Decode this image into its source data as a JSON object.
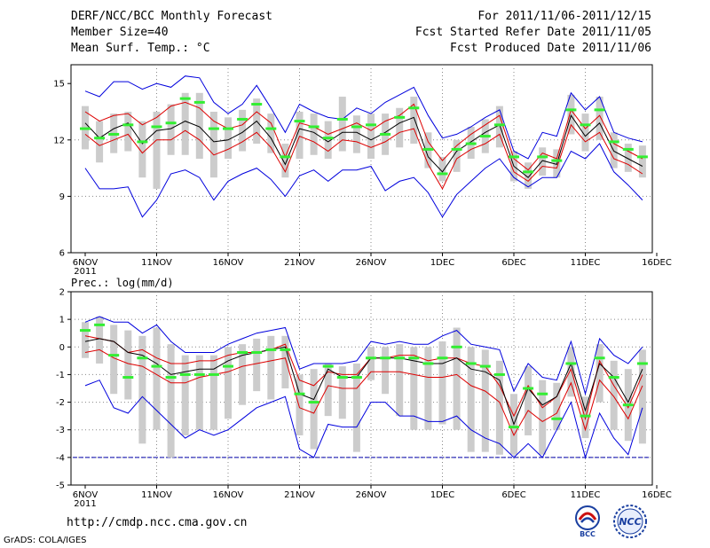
{
  "header": {
    "title": "DERF/NCC/BCC Monthly Forecast",
    "member_size": "Member Size=40",
    "variable": "Mean Surf. Temp.: °C",
    "period": "For 2011/11/06-2011/12/15",
    "fcst_started": "Fcst Started Refer Date 2011/11/05",
    "fcst_produced": "Fcst Produced Date 2011/11/06"
  },
  "footer": {
    "url": "http://cmdp.ncc.cma.gov.cn",
    "credit": "GrADS: COLA/IGES"
  },
  "logos": {
    "bcc": "BCC",
    "ncc": "NCC"
  },
  "colors": {
    "mean": "#000000",
    "spread": "#dd0000",
    "envelope": "#0000dd",
    "box": "#cccccc",
    "marker": "#33ee33"
  },
  "chart_data": [
    {
      "type": "line",
      "title": "Mean Surf. Temp.: °C",
      "x_tick_labels": [
        "6NOV",
        "11NOV",
        "16NOV",
        "21NOV",
        "26NOV",
        "1DEC",
        "6DEC",
        "11DEC",
        "16DEC"
      ],
      "x_year_label": "2011",
      "ylim": [
        6,
        16
      ],
      "y_ticks": [
        6,
        9,
        12,
        15
      ],
      "grid": true,
      "series": [
        {
          "name": "max",
          "values": [
            14.6,
            14.3,
            15.1,
            15.1,
            14.7,
            15.0,
            14.8,
            15.4,
            15.3,
            14.0,
            13.4,
            13.9,
            14.9,
            13.7,
            12.4,
            13.9,
            13.5,
            13.2,
            13.1,
            13.7,
            13.4,
            14.0,
            14.4,
            14.8,
            13.3,
            12.1,
            12.3,
            12.7,
            13.2,
            13.6,
            11.4,
            11.0,
            12.4,
            12.2,
            14.5,
            13.6,
            14.3,
            12.4,
            12.1,
            11.9
          ]
        },
        {
          "name": "upper",
          "values": [
            13.5,
            13.0,
            13.3,
            13.4,
            12.8,
            13.2,
            13.8,
            14.0,
            13.7,
            13.0,
            12.6,
            12.8,
            13.5,
            12.9,
            11.1,
            12.9,
            12.7,
            12.3,
            12.6,
            12.9,
            12.5,
            13.0,
            13.3,
            13.9,
            11.9,
            10.9,
            11.7,
            12.3,
            12.8,
            13.3,
            11.0,
            10.4,
            11.3,
            11.0,
            13.6,
            12.6,
            13.3,
            11.8,
            11.4,
            11.0
          ]
        },
        {
          "name": "mean",
          "values": [
            12.9,
            12.1,
            12.6,
            12.9,
            11.8,
            12.5,
            12.6,
            13.0,
            12.7,
            11.9,
            12.0,
            12.4,
            13.0,
            12.1,
            10.7,
            12.6,
            12.4,
            11.9,
            12.4,
            12.4,
            12.0,
            12.4,
            12.9,
            13.2,
            11.1,
            10.3,
            11.4,
            11.9,
            12.4,
            12.8,
            10.6,
            10.0,
            10.9,
            10.7,
            13.3,
            12.2,
            12.9,
            11.4,
            11.0,
            10.6
          ]
        },
        {
          "name": "lower",
          "values": [
            12.3,
            11.7,
            12.0,
            12.3,
            11.3,
            12.0,
            12.0,
            12.5,
            12.0,
            11.2,
            11.5,
            11.9,
            12.4,
            11.6,
            10.3,
            12.2,
            11.9,
            11.4,
            12.0,
            11.9,
            11.6,
            11.9,
            12.4,
            12.6,
            10.7,
            9.4,
            11.0,
            11.5,
            11.8,
            12.3,
            10.3,
            9.8,
            10.6,
            10.5,
            12.8,
            11.9,
            12.4,
            11.0,
            10.7,
            10.2
          ]
        },
        {
          "name": "min",
          "values": [
            10.5,
            9.4,
            9.4,
            9.5,
            7.9,
            8.8,
            10.2,
            10.4,
            10.0,
            8.8,
            9.8,
            10.2,
            10.5,
            9.9,
            9.0,
            10.1,
            10.4,
            9.8,
            10.4,
            10.4,
            10.6,
            9.3,
            9.8,
            10.0,
            9.2,
            7.9,
            9.1,
            9.8,
            10.5,
            11.0,
            10.0,
            9.5,
            10.0,
            10.0,
            11.4,
            11.0,
            11.8,
            10.3,
            9.6,
            8.8
          ]
        },
        {
          "name": "obs",
          "values": [
            12.6,
            12.1,
            12.3,
            12.8,
            11.9,
            12.7,
            12.9,
            14.2,
            14.0,
            12.6,
            12.6,
            13.1,
            13.9,
            12.6,
            11.1,
            13.0,
            12.7,
            12.1,
            13.1,
            12.7,
            12.8,
            12.3,
            13.2,
            13.7,
            11.5,
            10.2,
            11.5,
            11.8,
            12.2,
            12.8,
            11.1,
            10.3,
            11.1,
            10.9,
            13.6,
            12.8,
            13.6,
            11.9,
            11.5,
            11.1
          ]
        },
        {
          "name": "box_high",
          "values": [
            13.8,
            13.0,
            13.4,
            13.5,
            13.0,
            13.5,
            13.9,
            14.5,
            14.5,
            13.5,
            13.2,
            13.6,
            14.2,
            13.4,
            11.8,
            13.5,
            13.4,
            13.0,
            14.3,
            13.3,
            13.4,
            13.4,
            13.7,
            14.3,
            12.4,
            11.1,
            12.0,
            12.7,
            13.1,
            13.8,
            11.4,
            10.8,
            11.6,
            11.5,
            14.4,
            13.4,
            14.3,
            12.4,
            11.8,
            11.7
          ]
        },
        {
          "name": "box_low",
          "values": [
            11.5,
            10.8,
            11.3,
            11.4,
            10.0,
            9.4,
            11.2,
            11.2,
            11.0,
            10.0,
            11.0,
            11.4,
            11.8,
            11.3,
            10.0,
            11.0,
            11.2,
            11.0,
            11.4,
            11.3,
            11.0,
            11.2,
            11.6,
            11.8,
            10.5,
            9.8,
            10.3,
            11.0,
            11.3,
            11.6,
            9.8,
            9.4,
            10.1,
            10.0,
            12.3,
            11.4,
            12.0,
            10.5,
            10.3,
            10.0
          ]
        }
      ]
    },
    {
      "type": "line",
      "title": "Prec.: log(mm/d)",
      "x_tick_labels": [
        "6NOV",
        "11NOV",
        "16NOV",
        "21NOV",
        "26NOV",
        "1DEC",
        "6DEC",
        "11DEC",
        "16DEC"
      ],
      "x_year_label": "2011",
      "ylim": [
        -5,
        2
      ],
      "y_ticks": [
        -5,
        -4,
        -3,
        -2,
        -1,
        0,
        1,
        2
      ],
      "grid": true,
      "series": [
        {
          "name": "max",
          "values": [
            0.9,
            1.1,
            0.9,
            0.9,
            0.5,
            0.8,
            0.2,
            -0.2,
            -0.2,
            -0.2,
            0.1,
            0.3,
            0.5,
            0.6,
            0.7,
            -0.8,
            -0.6,
            -0.6,
            -0.6,
            -0.5,
            0.2,
            0.1,
            0.2,
            0.1,
            0.1,
            0.4,
            0.6,
            0.1,
            0.0,
            -0.1,
            -1.6,
            -0.6,
            -1.1,
            -1.2,
            0.2,
            -1.7,
            0.3,
            -0.3,
            -0.6,
            0.0
          ]
        },
        {
          "name": "upper",
          "values": [
            0.4,
            0.3,
            0.2,
            -0.2,
            -0.1,
            -0.4,
            -0.6,
            -0.6,
            -0.5,
            -0.5,
            -0.3,
            -0.2,
            -0.2,
            -0.1,
            0.1,
            -1.2,
            -1.4,
            -0.9,
            -1.0,
            -1.0,
            -0.4,
            -0.4,
            -0.3,
            -0.3,
            -0.5,
            -0.4,
            -0.4,
            -0.6,
            -0.7,
            -1.4,
            -2.5,
            -1.4,
            -2.2,
            -1.8,
            -0.8,
            -2.6,
            -0.5,
            -1.4,
            -2.2,
            -1.0
          ]
        },
        {
          "name": "mean",
          "values": [
            0.2,
            0.3,
            0.2,
            -0.2,
            -0.3,
            -0.6,
            -1.0,
            -0.9,
            -0.8,
            -0.8,
            -0.5,
            -0.3,
            -0.2,
            -0.1,
            0.0,
            -1.7,
            -1.9,
            -0.8,
            -1.1,
            -1.1,
            -0.4,
            -0.4,
            -0.4,
            -0.5,
            -0.6,
            -0.6,
            -0.4,
            -0.8,
            -0.9,
            -1.2,
            -2.8,
            -1.5,
            -2.1,
            -1.8,
            -0.6,
            -2.3,
            -0.6,
            -1.1,
            -2.0,
            -0.8
          ]
        },
        {
          "name": "lower",
          "values": [
            -0.2,
            -0.1,
            -0.4,
            -0.6,
            -0.7,
            -1.0,
            -1.3,
            -1.3,
            -1.1,
            -1.0,
            -0.9,
            -0.7,
            -0.6,
            -0.5,
            -0.4,
            -2.2,
            -2.4,
            -1.4,
            -1.5,
            -1.5,
            -0.9,
            -0.9,
            -0.9,
            -1.0,
            -1.1,
            -1.1,
            -1.0,
            -1.4,
            -1.6,
            -2.0,
            -3.2,
            -2.3,
            -2.7,
            -2.4,
            -1.3,
            -3.0,
            -1.2,
            -1.8,
            -2.6,
            -1.4
          ]
        },
        {
          "name": "min",
          "values": [
            -1.4,
            -1.2,
            -2.2,
            -2.4,
            -1.8,
            -2.3,
            -2.8,
            -3.3,
            -3.0,
            -3.2,
            -3.0,
            -2.6,
            -2.2,
            -2.0,
            -1.8,
            -3.7,
            -4.0,
            -2.8,
            -2.9,
            -2.9,
            -2.0,
            -2.0,
            -2.5,
            -2.5,
            -2.7,
            -2.7,
            -2.5,
            -3.0,
            -3.3,
            -3.5,
            -4.0,
            -3.5,
            -4.0,
            -3.0,
            -2.0,
            -4.0,
            -2.4,
            -3.3,
            -3.9,
            -2.2
          ]
        },
        {
          "name": "obs",
          "values": [
            0.6,
            0.8,
            -0.3,
            -1.1,
            -0.4,
            -0.7,
            -1.1,
            -1.0,
            -1.0,
            -1.0,
            -0.7,
            -0.2,
            -0.2,
            -0.1,
            -0.1,
            -1.7,
            -2.0,
            -0.7,
            -1.1,
            -1.1,
            -0.4,
            -0.4,
            -0.4,
            -0.4,
            -0.6,
            -0.4,
            0.0,
            -0.6,
            -0.7,
            -1.0,
            -2.9,
            -1.5,
            -1.7,
            -2.6,
            -0.6,
            -2.5,
            -0.4,
            -1.1,
            -2.1,
            -0.6
          ]
        },
        {
          "name": "box_high",
          "values": [
            0.9,
            1.1,
            0.8,
            0.6,
            0.4,
            0.7,
            0.1,
            -0.3,
            -0.3,
            -0.3,
            0.0,
            0.1,
            0.3,
            0.4,
            0.4,
            -1.0,
            -0.8,
            -0.6,
            -0.7,
            -0.6,
            0.0,
            0.0,
            0.1,
            0.0,
            0.0,
            0.2,
            0.7,
            0.0,
            -0.1,
            -0.5,
            -1.7,
            -0.7,
            -1.2,
            -1.3,
            0.0,
            -1.8,
            0.1,
            -0.5,
            -0.8,
            -0.1
          ]
        },
        {
          "name": "box_low",
          "values": [
            -0.4,
            -0.6,
            -1.7,
            -1.9,
            -3.5,
            -3.0,
            -4.0,
            -3.2,
            -3.0,
            -3.0,
            -2.6,
            -2.1,
            -1.6,
            -1.9,
            -1.5,
            -3.2,
            -3.7,
            -2.5,
            -2.6,
            -3.8,
            -1.2,
            -1.7,
            -2.5,
            -3.0,
            -3.0,
            -2.8,
            -3.0,
            -3.8,
            -3.8,
            -3.9,
            -3.9,
            -3.2,
            -3.9,
            -3.0,
            -1.8,
            -3.3,
            -2.0,
            -3.0,
            -3.4,
            -3.5
          ]
        }
      ]
    }
  ]
}
